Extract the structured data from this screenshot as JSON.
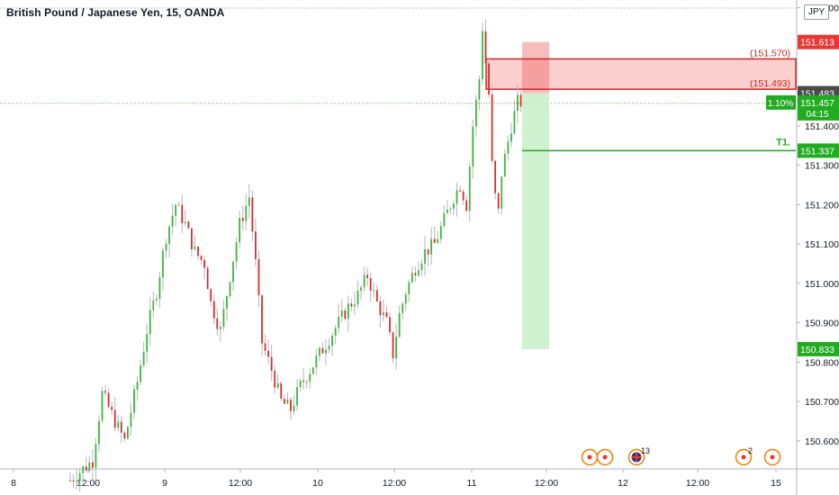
{
  "header": {
    "title": "British Pound / Japanese Yen, 15, OANDA",
    "currency_button": "JPY"
  },
  "colors": {
    "up": "#26a69a",
    "up_green": "#3db43d",
    "down": "#d32f2f",
    "wick": "#b2b5be",
    "grid": "#e0e3eb",
    "stop_zone": "#f4a7a7",
    "target_zone": "#c8eec8",
    "target_line": "#21a821"
  },
  "chart_data": {
    "type": "candlestick",
    "title": "British Pound / Japanese Yen, 15, OANDA",
    "symbol": "GBPJPY",
    "interval": "15",
    "ylim": [
      150.52,
      151.71
    ],
    "y_ticks": [
      "151.700",
      "151.400",
      "151.300",
      "151.200",
      "151.100",
      "151.000",
      "150.900",
      "150.800",
      "150.700",
      "150.600"
    ],
    "x_ticks": [
      "8",
      "12:00",
      "9",
      "12:00",
      "10",
      "12:00",
      "11",
      "12:00",
      "12",
      "12:00",
      "15"
    ],
    "price_labels": [
      {
        "id": "stop",
        "value": "151.613",
        "color": "#e53935"
      },
      {
        "id": "entry",
        "value": "151.483",
        "color": "#4a4a4a"
      },
      {
        "id": "current",
        "value": "151.457",
        "change": "1.10%",
        "countdown": "04:15",
        "color": "#22ab22"
      },
      {
        "id": "t1",
        "value": "151.337",
        "color": "#22ab22"
      },
      {
        "id": "target",
        "value": "150.833",
        "color": "#22ab22"
      }
    ],
    "annotations": [
      {
        "text": "(151.570)",
        "value": 151.57
      },
      {
        "text": "(151.493)",
        "value": 151.493
      },
      {
        "text": "T1.",
        "value": 151.337
      }
    ],
    "zones": {
      "resistance_box": {
        "top": 151.57,
        "bottom": 151.493
      },
      "stop_box": {
        "top": 151.613,
        "bottom": 151.483
      },
      "target_box": {
        "top": 151.483,
        "bottom": 150.833
      },
      "t1_line": 151.337
    },
    "event_markers": [
      {
        "label": ""
      },
      {
        "label": ""
      },
      {
        "label": "13"
      },
      {
        "label": "2"
      },
      {
        "label": ""
      }
    ],
    "path": [
      [
        0,
        150.5
      ],
      [
        7,
        150.55
      ],
      [
        10,
        150.72
      ],
      [
        14,
        150.65
      ],
      [
        17,
        150.6
      ],
      [
        21,
        150.75
      ],
      [
        24,
        150.88
      ],
      [
        27,
        150.98
      ],
      [
        30,
        151.12
      ],
      [
        33,
        151.2
      ],
      [
        36,
        151.15
      ],
      [
        39,
        151.08
      ],
      [
        42,
        151.05
      ],
      [
        44,
        150.95
      ],
      [
        47,
        150.88
      ],
      [
        50,
        151.02
      ],
      [
        53,
        151.15
      ],
      [
        56,
        151.22
      ],
      [
        58,
        151.05
      ],
      [
        60,
        150.85
      ],
      [
        63,
        150.78
      ],
      [
        66,
        150.7
      ],
      [
        69,
        150.68
      ],
      [
        72,
        150.74
      ],
      [
        75,
        150.78
      ],
      [
        78,
        150.82
      ],
      [
        81,
        150.86
      ],
      [
        84,
        150.9
      ],
      [
        87,
        150.94
      ],
      [
        90,
        150.97
      ],
      [
        93,
        151.02
      ],
      [
        96,
        150.95
      ],
      [
        99,
        150.9
      ],
      [
        101,
        150.82
      ],
      [
        103,
        150.92
      ],
      [
        105,
        150.98
      ],
      [
        108,
        151.04
      ],
      [
        111,
        151.08
      ],
      [
        114,
        151.1
      ],
      [
        117,
        151.16
      ],
      [
        120,
        151.22
      ],
      [
        122,
        151.25
      ],
      [
        124,
        151.2
      ],
      [
        126,
        151.4
      ],
      [
        128,
        151.52
      ],
      [
        129,
        151.65
      ],
      [
        130,
        151.56
      ],
      [
        131,
        151.48
      ],
      [
        132,
        151.3
      ],
      [
        133,
        151.22
      ],
      [
        134,
        151.18
      ],
      [
        135,
        151.28
      ],
      [
        136,
        151.32
      ],
      [
        138,
        151.4
      ],
      [
        140,
        151.46
      ],
      [
        141,
        151.46
      ]
    ]
  }
}
